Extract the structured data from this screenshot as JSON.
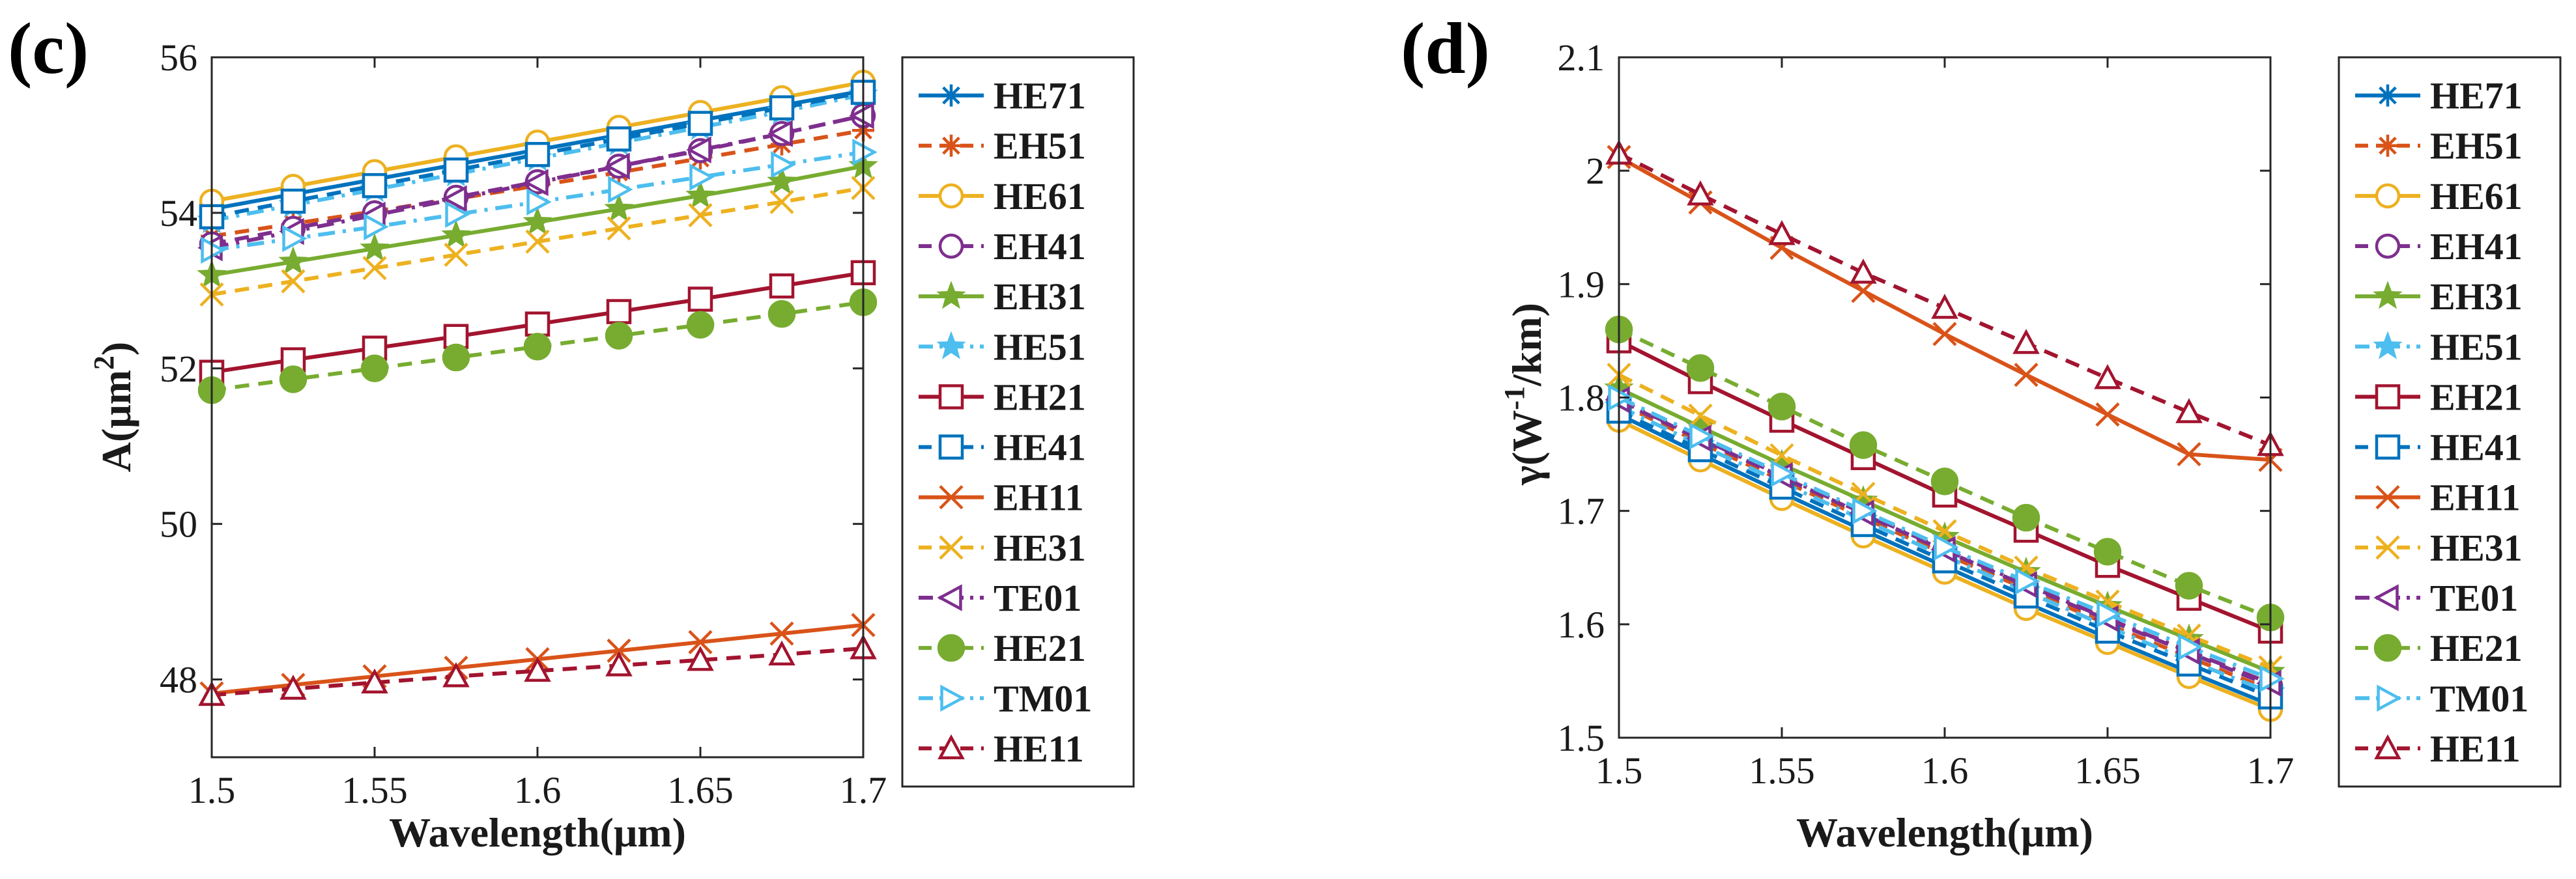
{
  "colors": {
    "blue": "#0072BD",
    "orange": "#D95319",
    "yellow": "#EDB120",
    "purple": "#7E2F8E",
    "green": "#77AC30",
    "cyan": "#4DBEEE",
    "red": "#A2142F"
  },
  "chart_data": [
    {
      "type": "line",
      "panel_label": "(c)",
      "xlabel": "Wavelength(μm)",
      "ylabel_main": "A(μm",
      "ylabel_sup": "2",
      "ylabel_tail": ")",
      "xlim": [
        1.5,
        1.7
      ],
      "ylim": [
        47,
        56
      ],
      "xticks": [
        1.5,
        1.55,
        1.6,
        1.65,
        1.7
      ],
      "xtick_labels": [
        "1.5",
        "1.55",
        "1.6",
        "1.65",
        "1.7"
      ],
      "yticks": [
        48,
        50,
        52,
        54,
        56
      ],
      "ytick_labels": [
        "48",
        "50",
        "52",
        "54",
        "56"
      ],
      "legend_position": "outside-right",
      "x": [
        1.5,
        1.525,
        1.55,
        1.575,
        1.6,
        1.625,
        1.65,
        1.675,
        1.7
      ],
      "series": [
        {
          "name": "HE71",
          "color": "blue",
          "dash": "solid",
          "marker": "asterisk",
          "values": [
            54.05,
            54.24,
            54.43,
            54.62,
            54.81,
            55.0,
            55.19,
            55.38,
            55.57
          ]
        },
        {
          "name": "EH51",
          "color": "orange",
          "dash": "dashed",
          "marker": "asterisk",
          "values": [
            53.7,
            53.86,
            54.02,
            54.18,
            54.35,
            54.52,
            54.7,
            54.88,
            55.06
          ]
        },
        {
          "name": "HE61",
          "color": "yellow",
          "dash": "solid",
          "marker": "circle",
          "values": [
            54.15,
            54.34,
            54.53,
            54.72,
            54.91,
            55.1,
            55.29,
            55.48,
            55.68
          ]
        },
        {
          "name": "EH41",
          "color": "purple",
          "dash": "dashed",
          "marker": "circle",
          "values": [
            53.6,
            53.8,
            54.0,
            54.2,
            54.4,
            54.6,
            54.8,
            55.02,
            55.25
          ]
        },
        {
          "name": "EH31",
          "color": "green",
          "dash": "solid",
          "marker": "star",
          "values": [
            53.2,
            53.37,
            53.54,
            53.71,
            53.88,
            54.05,
            54.22,
            54.4,
            54.6
          ]
        },
        {
          "name": "HE51",
          "color": "cyan",
          "dash": "dashdot",
          "marker": "star",
          "values": [
            53.9,
            54.1,
            54.3,
            54.5,
            54.7,
            54.9,
            55.1,
            55.3,
            55.52
          ]
        },
        {
          "name": "EH21",
          "color": "red",
          "dash": "solid",
          "marker": "square",
          "values": [
            51.95,
            52.11,
            52.26,
            52.41,
            52.57,
            52.73,
            52.89,
            53.06,
            53.23
          ]
        },
        {
          "name": "HE41",
          "color": "blue",
          "dash": "dashed",
          "marker": "square",
          "values": [
            53.95,
            54.15,
            54.35,
            54.55,
            54.75,
            54.95,
            55.15,
            55.35,
            55.55
          ]
        },
        {
          "name": "EH11",
          "color": "orange",
          "dash": "solid",
          "marker": "x",
          "values": [
            47.82,
            47.93,
            48.04,
            48.15,
            48.26,
            48.37,
            48.48,
            48.59,
            48.7
          ]
        },
        {
          "name": "HE31",
          "color": "yellow",
          "dash": "dashed",
          "marker": "x",
          "values": [
            52.95,
            53.12,
            53.29,
            53.46,
            53.63,
            53.8,
            53.97,
            54.14,
            54.32
          ]
        },
        {
          "name": "TE01",
          "color": "purple",
          "dash": "dashdot",
          "marker": "triangle-left",
          "values": [
            53.55,
            53.76,
            53.97,
            54.18,
            54.39,
            54.6,
            54.81,
            55.02,
            55.25
          ]
        },
        {
          "name": "HE21",
          "color": "green",
          "dash": "dashed",
          "marker": "filled-circle",
          "values": [
            51.72,
            51.86,
            52.0,
            52.14,
            52.28,
            52.42,
            52.56,
            52.7,
            52.85
          ]
        },
        {
          "name": "TM01",
          "color": "cyan",
          "dash": "dashdot",
          "marker": "triangle-right",
          "values": [
            53.52,
            53.67,
            53.82,
            53.98,
            54.14,
            54.3,
            54.46,
            54.62,
            54.78
          ]
        },
        {
          "name": "HE11",
          "color": "red",
          "dash": "dashed",
          "marker": "triangle-up",
          "values": [
            47.8,
            47.88,
            47.96,
            48.04,
            48.11,
            48.18,
            48.25,
            48.32,
            48.4
          ]
        }
      ]
    },
    {
      "type": "line",
      "panel_label": "(d)",
      "xlabel": "Wavelength(μm)",
      "ylabel_main": "γ(W",
      "ylabel_sup": "-1",
      "ylabel_tail": "/km)",
      "xlim": [
        1.5,
        1.7
      ],
      "ylim": [
        1.5,
        2.1
      ],
      "xticks": [
        1.5,
        1.55,
        1.6,
        1.65,
        1.7
      ],
      "xtick_labels": [
        "1.5",
        "1.55",
        "1.6",
        "1.65",
        "1.7"
      ],
      "yticks": [
        1.5,
        1.6,
        1.7,
        1.8,
        1.9,
        2.0,
        2.1
      ],
      "ytick_labels": [
        "1.5",
        "1.6",
        "1.7",
        "1.8",
        "1.9",
        "2",
        "2.1"
      ],
      "legend_position": "outside-right",
      "x": [
        1.5,
        1.525,
        1.55,
        1.575,
        1.6,
        1.625,
        1.65,
        1.675,
        1.7
      ],
      "series": [
        {
          "name": "HE71",
          "color": "blue",
          "dash": "solid",
          "marker": "asterisk",
          "values": [
            1.785,
            1.75,
            1.716,
            1.683,
            1.651,
            1.619,
            1.588,
            1.558,
            1.529
          ]
        },
        {
          "name": "EH51",
          "color": "orange",
          "dash": "dashed",
          "marker": "asterisk",
          "values": [
            1.795,
            1.76,
            1.727,
            1.694,
            1.662,
            1.631,
            1.6,
            1.571,
            1.542
          ]
        },
        {
          "name": "HE61",
          "color": "yellow",
          "dash": "solid",
          "marker": "circle",
          "values": [
            1.78,
            1.745,
            1.711,
            1.678,
            1.646,
            1.614,
            1.584,
            1.554,
            1.525
          ]
        },
        {
          "name": "EH41",
          "color": "purple",
          "dash": "dashed",
          "marker": "circle",
          "values": [
            1.797,
            1.763,
            1.73,
            1.697,
            1.665,
            1.634,
            1.604,
            1.575,
            1.546
          ]
        },
        {
          "name": "EH31",
          "color": "green",
          "dash": "solid",
          "marker": "star",
          "values": [
            1.808,
            1.774,
            1.741,
            1.709,
            1.677,
            1.646,
            1.616,
            1.587,
            1.558
          ]
        },
        {
          "name": "HE51",
          "color": "cyan",
          "dash": "dashdot",
          "marker": "star",
          "values": [
            1.792,
            1.758,
            1.725,
            1.692,
            1.66,
            1.629,
            1.598,
            1.568,
            1.54
          ]
        },
        {
          "name": "EH21",
          "color": "red",
          "dash": "solid",
          "marker": "square",
          "values": [
            1.85,
            1.814,
            1.78,
            1.747,
            1.714,
            1.683,
            1.652,
            1.623,
            1.594
          ]
        },
        {
          "name": "HE41",
          "color": "blue",
          "dash": "dashed",
          "marker": "square",
          "values": [
            1.788,
            1.754,
            1.721,
            1.688,
            1.656,
            1.625,
            1.594,
            1.565,
            1.536
          ]
        },
        {
          "name": "EH11",
          "color": "orange",
          "dash": "solid",
          "marker": "x",
          "values": [
            2.012,
            1.972,
            1.932,
            1.894,
            1.856,
            1.82,
            1.785,
            1.75,
            1.745
          ]
        },
        {
          "name": "HE31",
          "color": "yellow",
          "dash": "dashed",
          "marker": "x",
          "values": [
            1.82,
            1.784,
            1.749,
            1.715,
            1.682,
            1.65,
            1.62,
            1.59,
            1.562
          ]
        },
        {
          "name": "TE01",
          "color": "purple",
          "dash": "dashdot",
          "marker": "triangle-left",
          "values": [
            1.798,
            1.764,
            1.731,
            1.698,
            1.666,
            1.635,
            1.605,
            1.576,
            1.548
          ]
        },
        {
          "name": "HE21",
          "color": "green",
          "dash": "dashed",
          "marker": "filled-circle",
          "values": [
            1.86,
            1.826,
            1.792,
            1.758,
            1.726,
            1.694,
            1.664,
            1.634,
            1.606
          ]
        },
        {
          "name": "TM01",
          "color": "cyan",
          "dash": "dashdot",
          "marker": "triangle-right",
          "values": [
            1.8,
            1.766,
            1.733,
            1.7,
            1.668,
            1.638,
            1.609,
            1.58,
            1.552
          ]
        },
        {
          "name": "HE11",
          "color": "red",
          "dash": "dashed",
          "marker": "triangle-up",
          "values": [
            2.015,
            1.979,
            1.944,
            1.91,
            1.879,
            1.848,
            1.817,
            1.787,
            1.758
          ]
        }
      ]
    }
  ]
}
